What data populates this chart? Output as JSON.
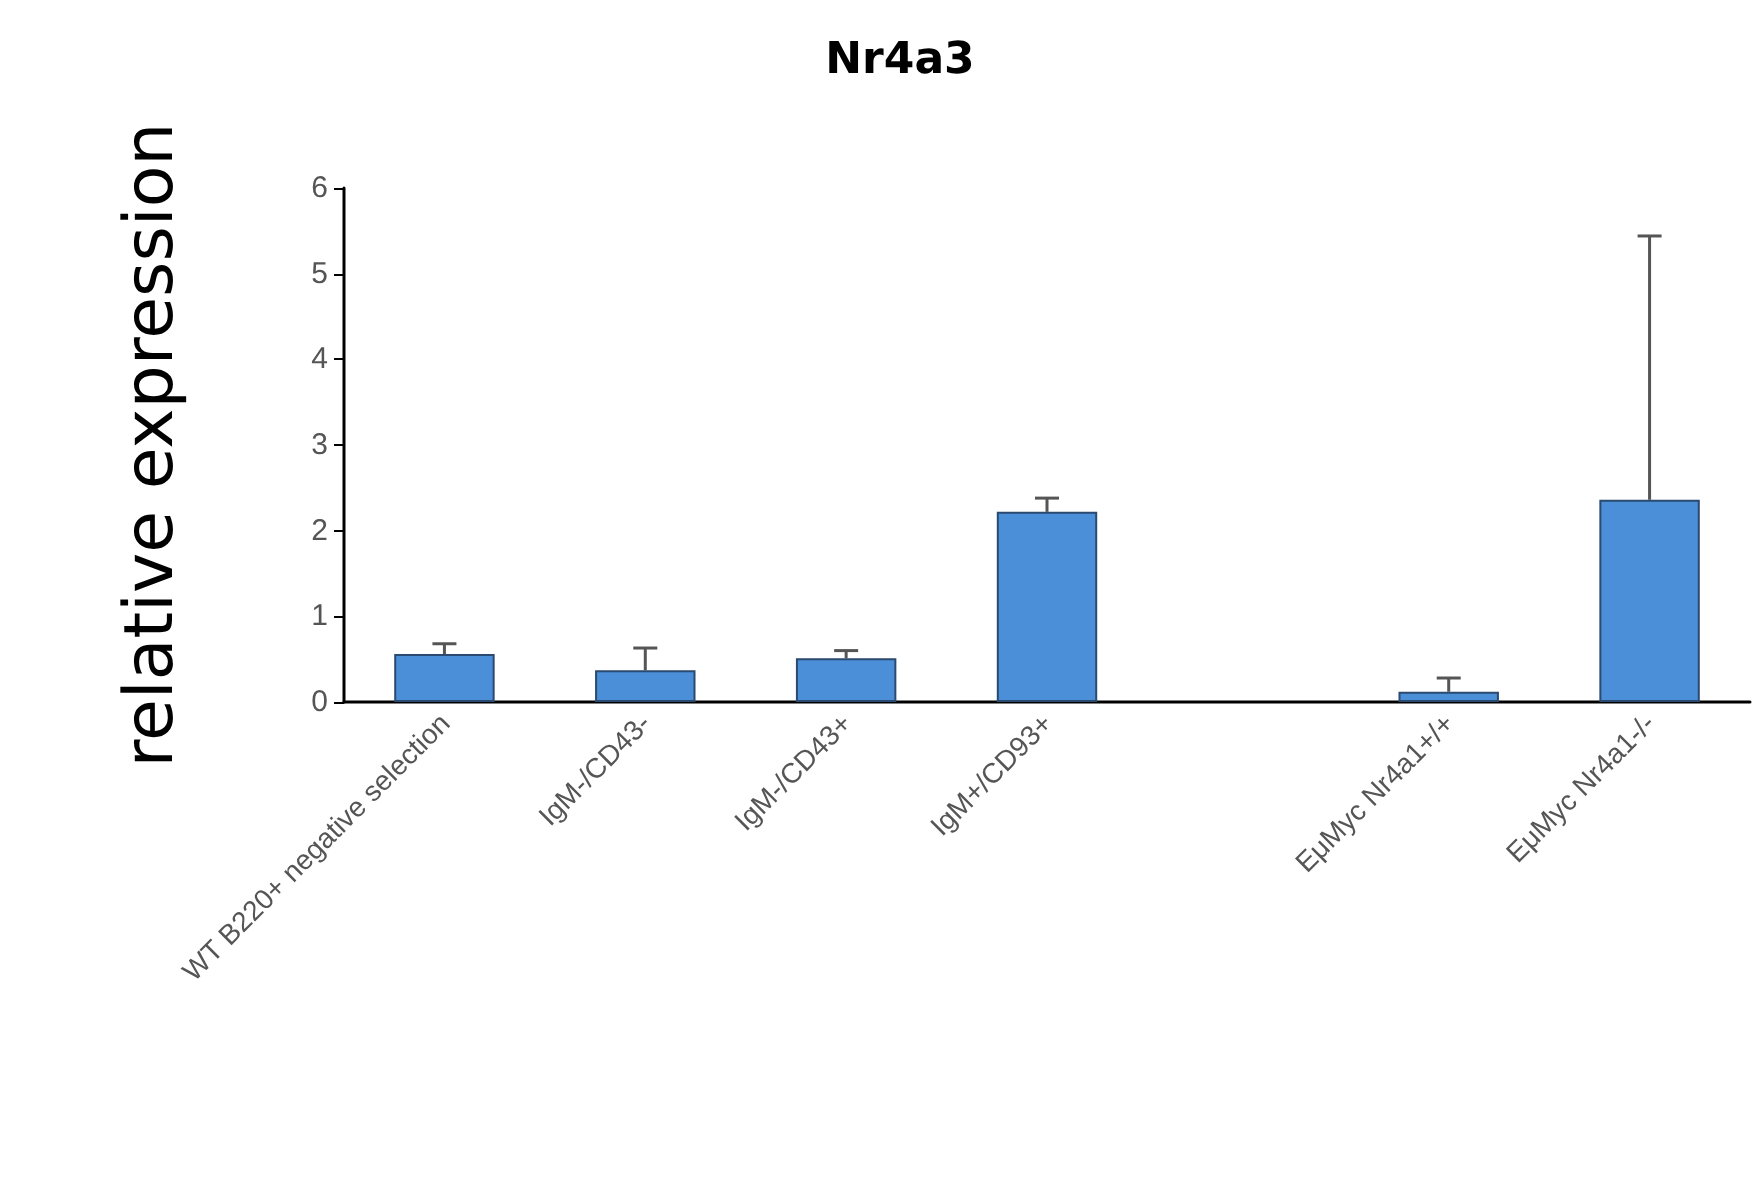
{
  "chart_data": {
    "type": "bar",
    "title": "Nr4a3",
    "ylabel": "relative expression",
    "categories": [
      "WT B220+ negative selection",
      "IgM-/CD43-",
      "IgM-/CD43+",
      "IgM+/CD93+",
      null,
      "EμMyc Nr4a1+/+",
      "EμMyc Nr4a1-/-"
    ],
    "values": [
      0.56,
      0.37,
      0.51,
      2.22,
      null,
      0.12,
      2.36
    ],
    "errors": [
      [
        0.56,
        0.68
      ],
      [
        0.37,
        0.63
      ],
      [
        0.51,
        0.6
      ],
      [
        2.22,
        2.38
      ],
      null,
      [
        0.12,
        0.28
      ],
      [
        2.36,
        5.44
      ]
    ],
    "color": "#4a8fd8",
    "ylim": [
      0,
      6
    ],
    "yticks": [
      0,
      1,
      2,
      3,
      4,
      5,
      6
    ],
    "grid": false
  }
}
